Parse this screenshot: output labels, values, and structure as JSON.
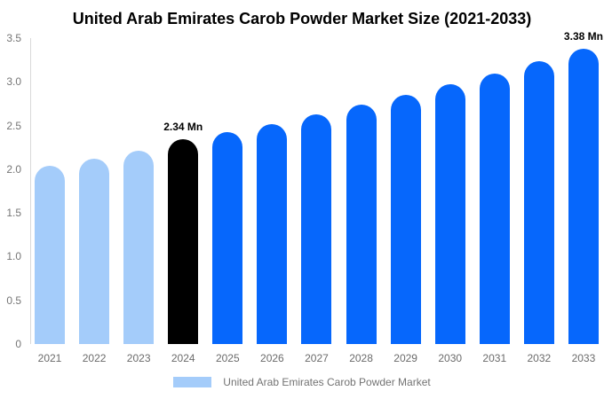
{
  "chart_data": {
    "type": "bar",
    "title": "United Arab Emirates Carob Powder Market Size (2021-2033)",
    "categories": [
      "2021",
      "2022",
      "2023",
      "2024",
      "2025",
      "2026",
      "2027",
      "2028",
      "2029",
      "2030",
      "2031",
      "2032",
      "2033"
    ],
    "values": [
      2.04,
      2.12,
      2.21,
      2.34,
      2.42,
      2.52,
      2.63,
      2.74,
      2.85,
      2.97,
      3.09,
      3.24,
      3.38
    ],
    "unit": "Mn",
    "bar_colors": [
      "#a4ccfa",
      "#a4ccfa",
      "#a4ccfa",
      "#000000",
      "#0667fc",
      "#0667fc",
      "#0667fc",
      "#0667fc",
      "#0667fc",
      "#0667fc",
      "#0667fc",
      "#0667fc",
      "#0667fc"
    ],
    "annotations": [
      {
        "index": 3,
        "year": "2024",
        "text": "2.34 Mn"
      },
      {
        "index": 12,
        "year": "2033",
        "text": "3.38 Mn"
      }
    ],
    "ylim": [
      0,
      3.5
    ],
    "yticks": [
      "0",
      "0.5",
      "1.0",
      "1.5",
      "2.0",
      "2.5",
      "3.0",
      "3.5"
    ],
    "xlabel": "",
    "ylabel": "",
    "grid": false,
    "legend_position": "bottom"
  },
  "legend": {
    "label": "United Arab Emirates Carob Powder Market",
    "swatch_color": "#a4ccfa"
  },
  "colors": {
    "background": "#ffffff",
    "title_text": "#000000",
    "axis_line": "#d9d9d9",
    "tick_text": "#757575",
    "xlabel_text": "#6b6b6b",
    "legend_text": "#737373",
    "annotation_text": "#000000",
    "bar_past": "#a4ccfa",
    "bar_highlight": "#000000",
    "bar_forecast": "#0667fc"
  }
}
